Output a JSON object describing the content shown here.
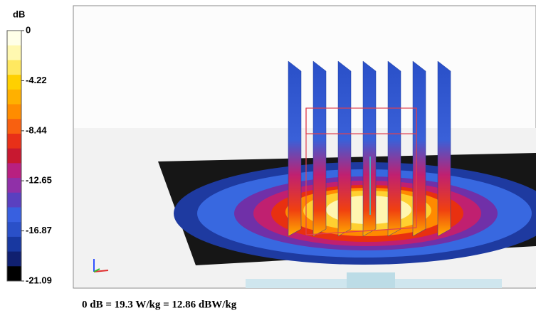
{
  "colorbar": {
    "unit": "dB",
    "ticks": [
      0,
      -4.22,
      -8.44,
      -12.65,
      -16.87,
      -21.09
    ]
  },
  "caption": "0 dB = 19.3 W/kg = 12.86 dBW/kg"
}
